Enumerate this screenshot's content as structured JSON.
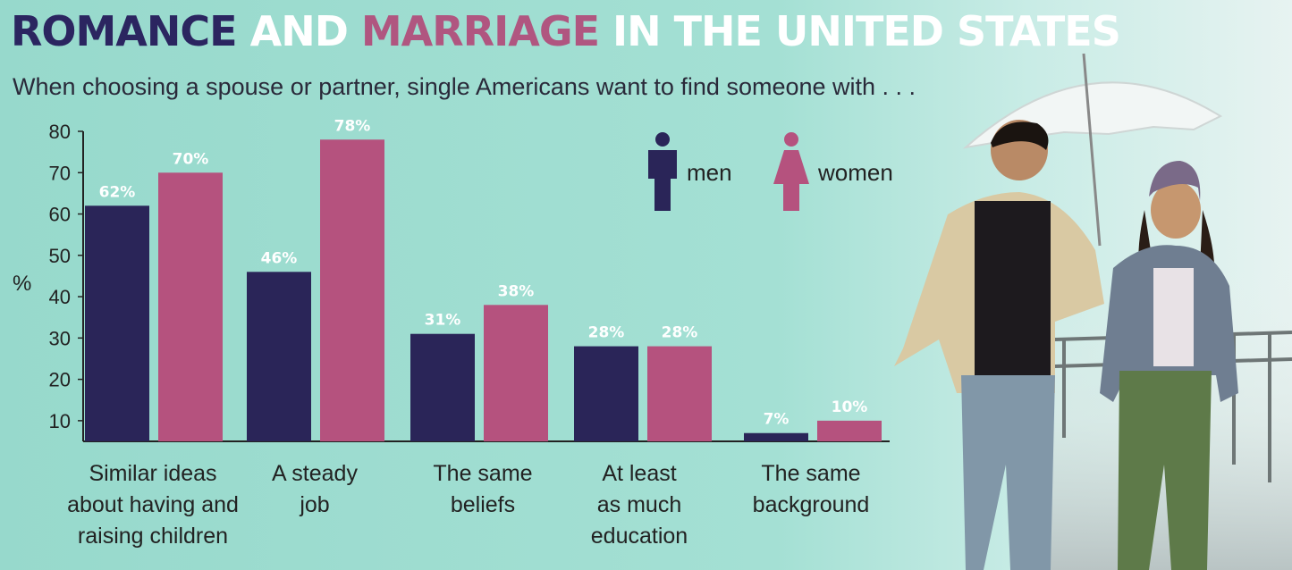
{
  "title_parts": [
    {
      "text": "ROMANCE ",
      "color": "#2b2560"
    },
    {
      "text": "AND ",
      "color": "#ffffff"
    },
    {
      "text": "MARRIAGE ",
      "color": "#b05680"
    },
    {
      "text": "IN THE UNITED STATES",
      "color": "#ffffff"
    }
  ],
  "subtitle": "When choosing a spouse or partner, single Americans want to find someone with . . .",
  "colors": {
    "men": "#2a2558",
    "women": "#b5527e",
    "axis": "#222222",
    "label_white": "#ffffff"
  },
  "legend": {
    "men_label": "men",
    "women_label": "women",
    "men_icon": "man-icon",
    "women_icon": "woman-icon"
  },
  "chart_data": {
    "type": "bar",
    "title": "ROMANCE AND MARRIAGE IN THE UNITED STATES",
    "subtitle": "When choosing a spouse or partner, single Americans want to find someone with . . .",
    "ylabel": "%",
    "xlabel": "",
    "ylim": [
      5,
      80
    ],
    "yticks": [
      "10",
      "20",
      "30",
      "40",
      "50",
      "60",
      "70",
      "80"
    ],
    "grid": false,
    "legend_position": "top-right",
    "categories": [
      [
        "Similar ideas",
        "about having and",
        "raising children"
      ],
      [
        "A steady",
        "job"
      ],
      [
        "The same",
        "beliefs"
      ],
      [
        "At least",
        "as much",
        "education"
      ],
      [
        "The same",
        "background"
      ]
    ],
    "series": [
      {
        "name": "men",
        "values": [
          62,
          46,
          31,
          28,
          7
        ],
        "labels": [
          "62%",
          "46%",
          "31%",
          "28%",
          "7%"
        ]
      },
      {
        "name": "women",
        "values": [
          70,
          78,
          38,
          28,
          10
        ],
        "labels": [
          "70%",
          "78%",
          "38%",
          "28%",
          "10%"
        ]
      }
    ]
  }
}
